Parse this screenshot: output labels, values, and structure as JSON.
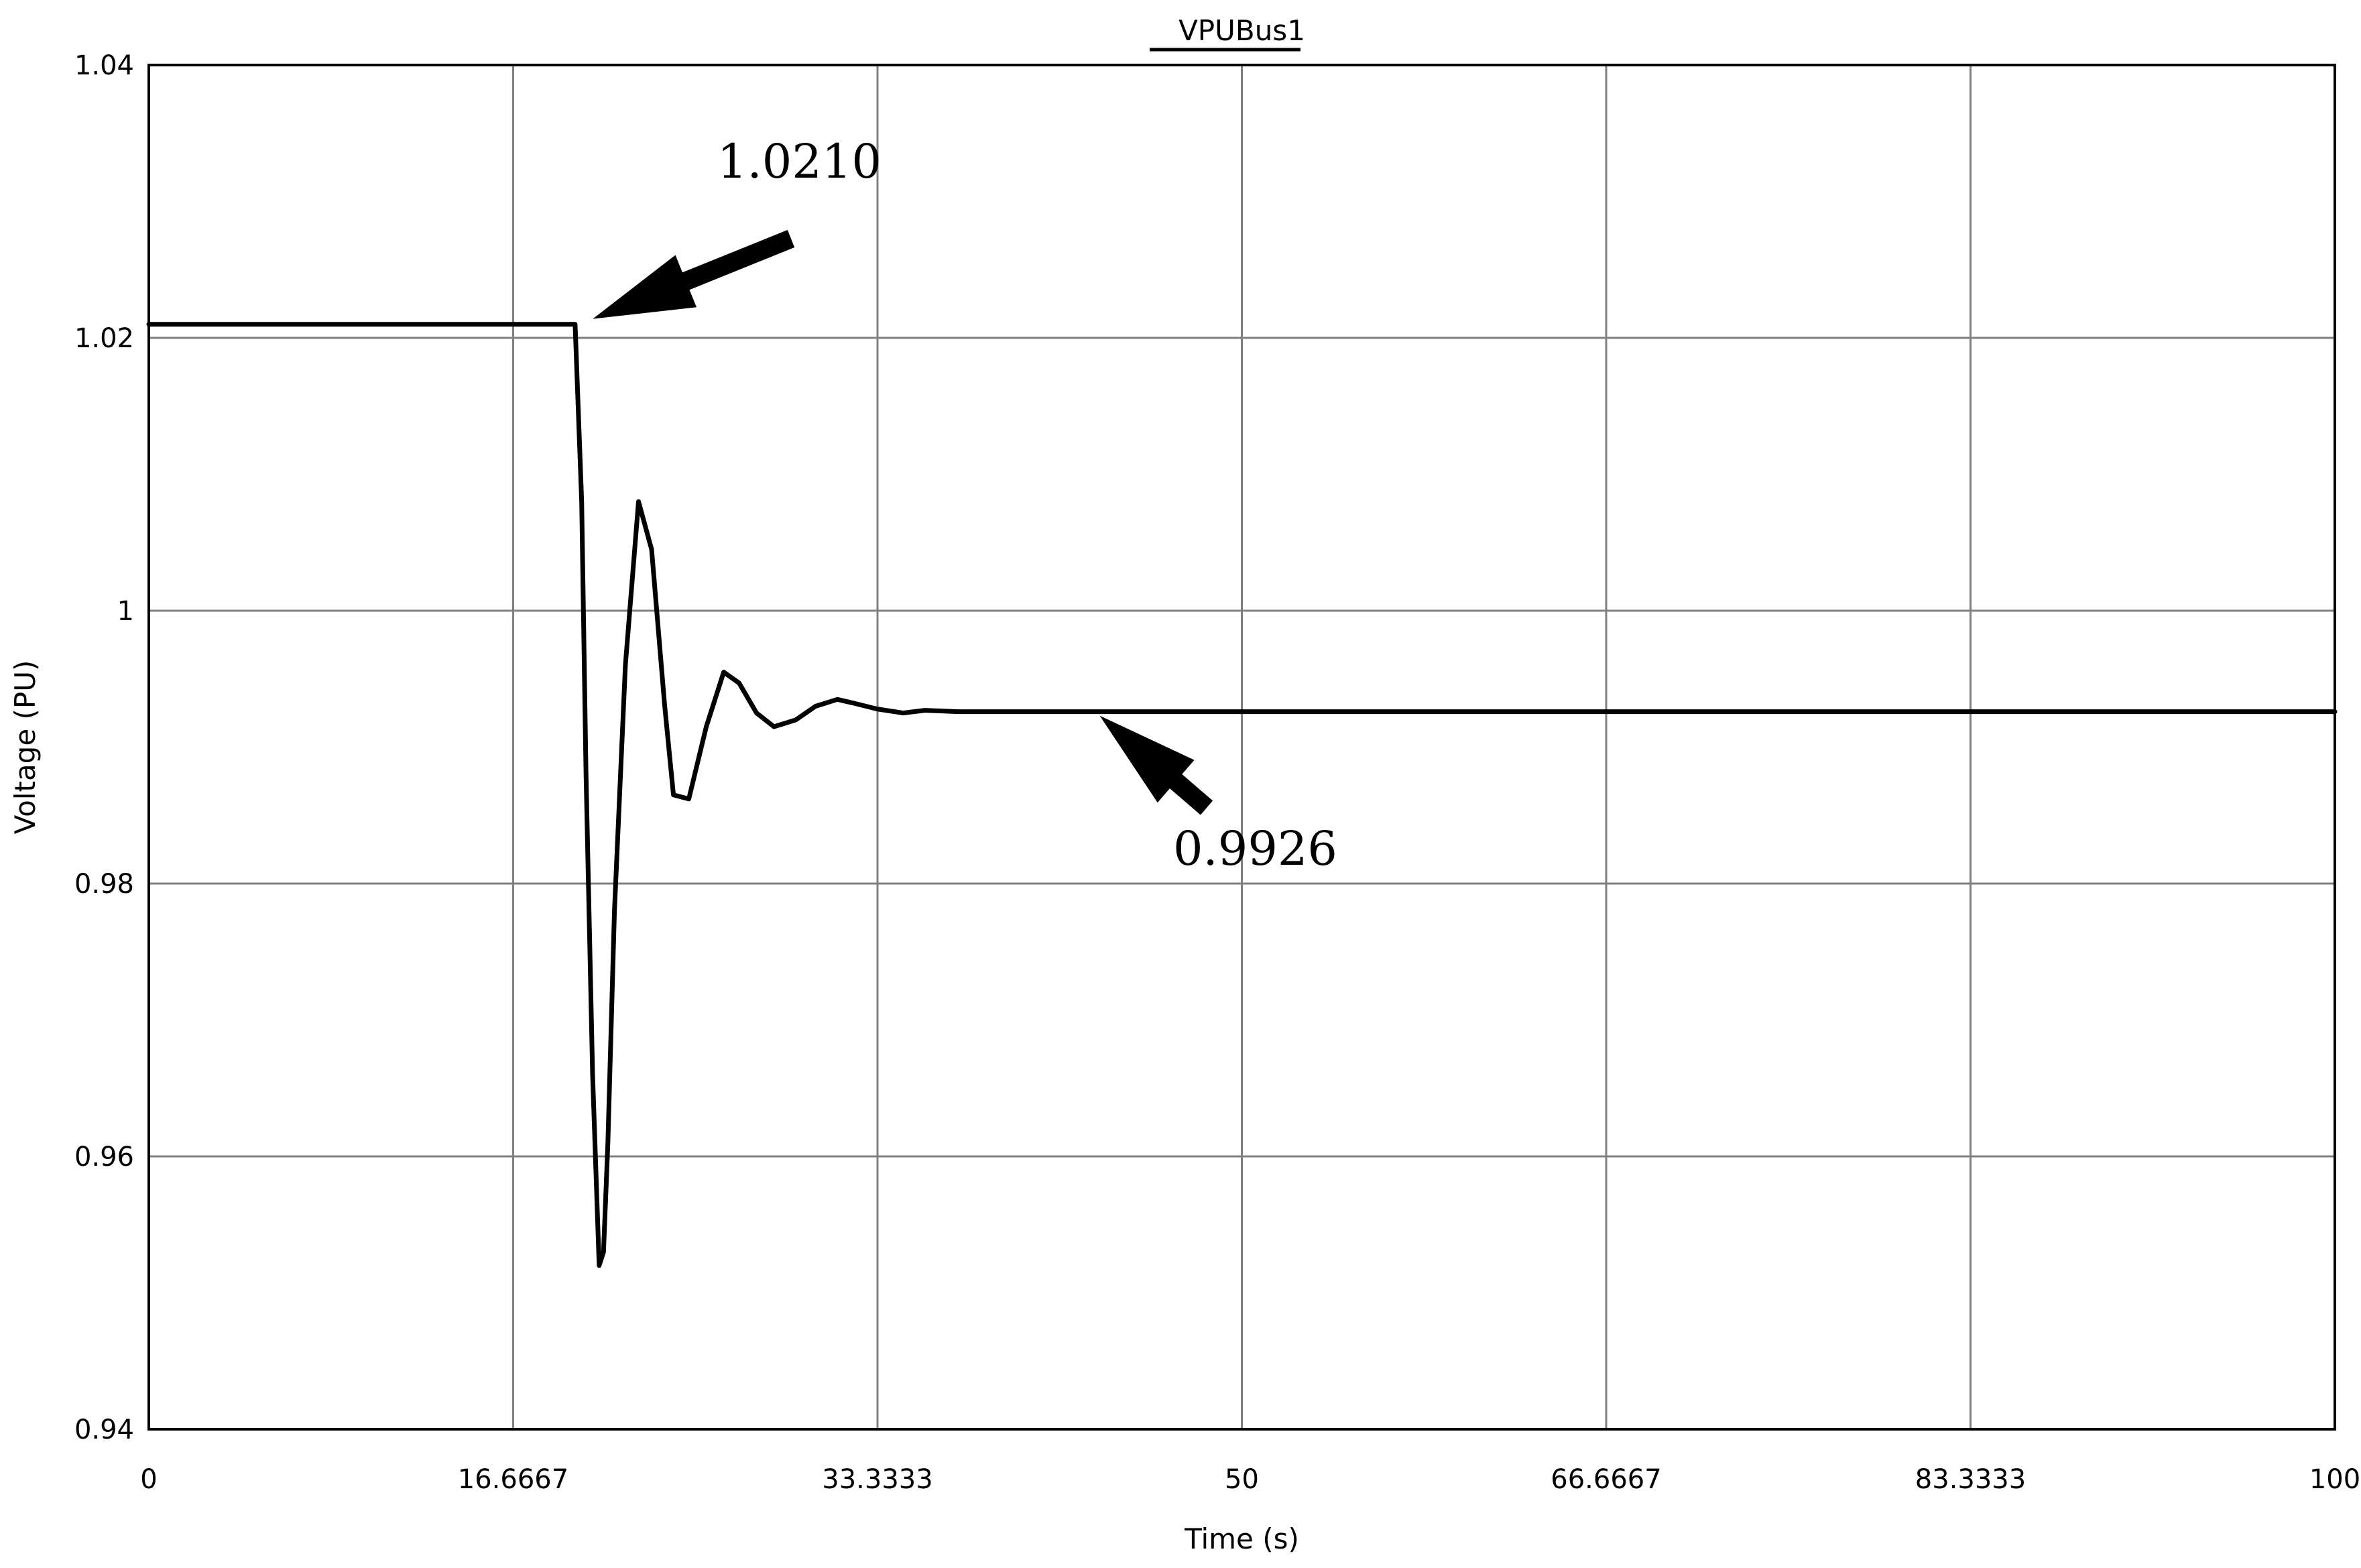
{
  "chart_data": {
    "type": "line",
    "title": "VPUBus1",
    "xlabel": "Time (s)",
    "ylabel": "Voltage (PU)",
    "xlim": [
      0,
      100
    ],
    "ylim": [
      0.94,
      1.04
    ],
    "x_tick_labels": [
      "0",
      "16.6667",
      "33.3333",
      "50",
      "66.6667",
      "83.3333",
      "100"
    ],
    "x_ticks": [
      0,
      16.6667,
      33.3333,
      50,
      66.6667,
      83.3333,
      100
    ],
    "y_tick_labels": [
      "0.94",
      "0.96",
      "0.98",
      "1",
      "1.02",
      "1.04"
    ],
    "y_ticks": [
      0.94,
      0.96,
      0.98,
      1.0,
      1.02,
      1.04
    ],
    "grid": true,
    "series": [
      {
        "x": [
          0,
          10,
          19.5,
          19.8,
          20.0,
          20.3,
          20.6,
          20.8,
          21.0,
          21.3,
          21.8,
          22.4,
          23.0,
          23.6,
          24.0,
          24.7,
          25.5,
          26.3,
          27.0,
          27.8,
          28.6,
          29.6,
          30.5,
          31.5,
          32.3,
          33.3,
          34.5,
          35.5,
          37.0,
          40,
          50,
          60,
          80,
          100
        ],
        "y": [
          1.021,
          1.021,
          1.021,
          1.008,
          0.988,
          0.966,
          0.952,
          0.953,
          0.961,
          0.978,
          0.996,
          1.008,
          1.0045,
          0.993,
          0.9865,
          0.9862,
          0.9915,
          0.9955,
          0.9947,
          0.9925,
          0.9915,
          0.992,
          0.993,
          0.9935,
          0.9932,
          0.9928,
          0.9925,
          0.9927,
          0.9926,
          0.9926,
          0.9926,
          0.9926,
          0.9926,
          0.9926
        ]
      }
    ],
    "annotations": [
      {
        "text": "1.0210",
        "x": 20.0,
        "y": 1.021
      },
      {
        "text": "0.9926",
        "x": 43.5,
        "y": 0.9926
      }
    ],
    "line_color": "#000000",
    "grid_color": "#808080"
  }
}
